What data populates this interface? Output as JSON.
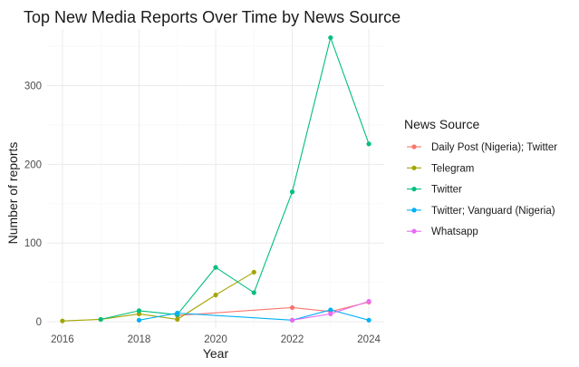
{
  "chart_data": {
    "type": "line",
    "title": "Top New Media Reports Over Time by News Source",
    "xlabel": "Year",
    "ylabel": "Number of reports",
    "xlim": [
      2015.6,
      2024.4
    ],
    "ylim": [
      -8,
      372
    ],
    "x_ticks": [
      2016,
      2018,
      2020,
      2022,
      2024
    ],
    "y_ticks": [
      0,
      100,
      200,
      300
    ],
    "grid": true,
    "legend": {
      "title": "News Source",
      "placement": "right"
    },
    "series": [
      {
        "name": "Daily Post (Nigeria); Twitter",
        "color": "#F8766D",
        "points": [
          [
            2019,
            8
          ],
          [
            2022,
            18
          ],
          [
            2023,
            13
          ],
          [
            2024,
            25
          ]
        ]
      },
      {
        "name": "Telegram",
        "color": "#A3A500",
        "points": [
          [
            2016,
            1
          ],
          [
            2017,
            3
          ],
          [
            2018,
            10
          ],
          [
            2019,
            3
          ],
          [
            2020,
            34
          ],
          [
            2021,
            63
          ]
        ]
      },
      {
        "name": "Twitter",
        "color": "#00BF7D",
        "points": [
          [
            2017,
            3
          ],
          [
            2018,
            14
          ],
          [
            2019,
            9
          ],
          [
            2020,
            69
          ],
          [
            2021,
            37
          ],
          [
            2022,
            165
          ],
          [
            2023,
            361
          ],
          [
            2024,
            226
          ]
        ]
      },
      {
        "name": "Twitter; Vanguard (Nigeria)",
        "color": "#00B0F6",
        "points": [
          [
            2018,
            2
          ],
          [
            2019,
            11
          ],
          [
            2022,
            2
          ],
          [
            2023,
            15
          ],
          [
            2024,
            2
          ]
        ]
      },
      {
        "name": "Whatsapp",
        "color": "#E76BF3",
        "points": [
          [
            2022,
            2
          ],
          [
            2023,
            10
          ],
          [
            2024,
            26
          ]
        ]
      }
    ]
  }
}
